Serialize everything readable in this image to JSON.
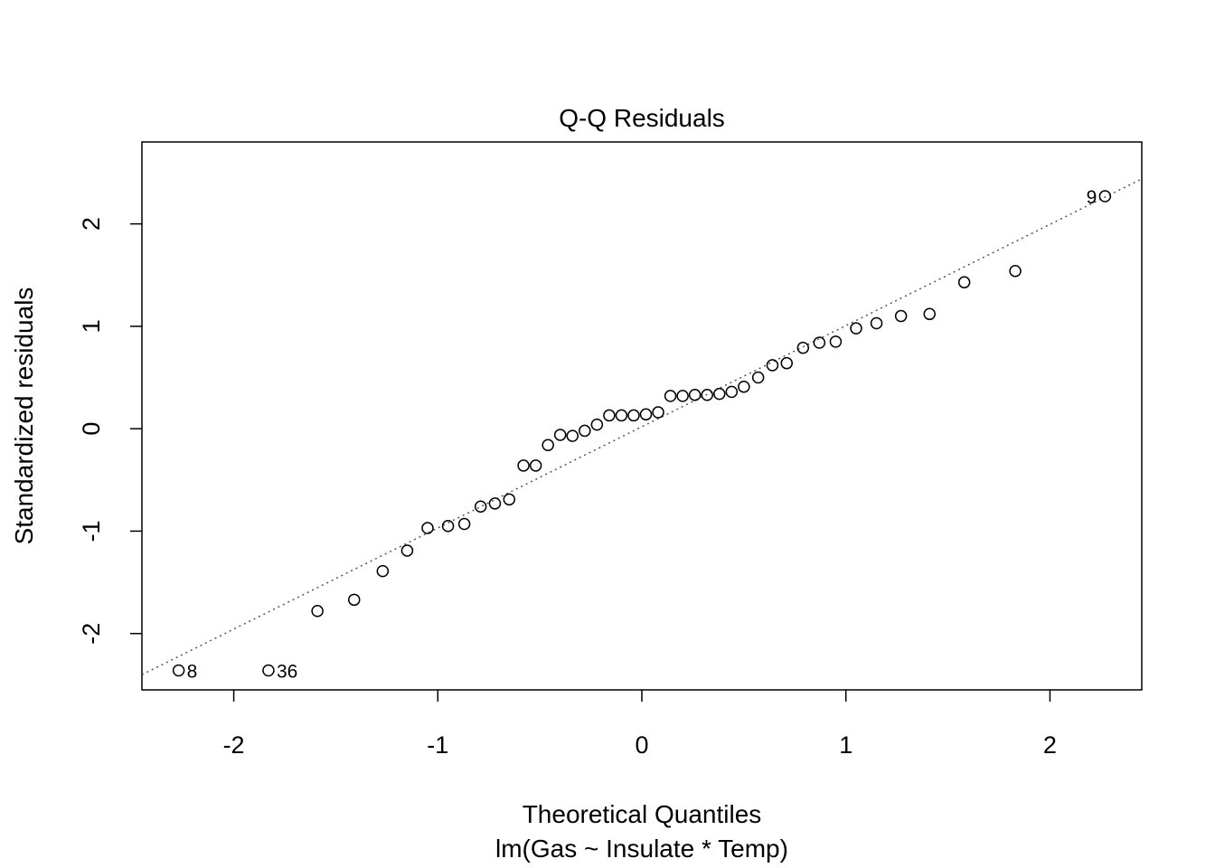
{
  "chart_data": {
    "type": "scatter",
    "title": "Q-Q Residuals",
    "xlabel": "Theoretical Quantiles",
    "subtitle": "lm(Gas ~ Insulate * Temp)",
    "ylabel": "Standardized residuals",
    "xlim": [
      -2.45,
      2.45
    ],
    "ylim": [
      -2.55,
      2.8
    ],
    "xticks": [
      -2,
      -1,
      0,
      1,
      2
    ],
    "yticks": [
      -2,
      -1,
      0,
      1,
      2
    ],
    "tick_labels_x": [
      "-2",
      "-1",
      "0",
      "1",
      "2"
    ],
    "tick_labels_y": [
      "-2",
      "-1",
      "0",
      "1",
      "2"
    ],
    "reference_line": {
      "slope": 0.988,
      "intercept": 0.019,
      "style": "dotted"
    },
    "x": [
      -2.27,
      -1.83,
      -1.59,
      -1.41,
      -1.27,
      -1.15,
      -1.05,
      -0.95,
      -0.87,
      -0.79,
      -0.72,
      -0.65,
      -0.58,
      -0.52,
      -0.46,
      -0.4,
      -0.34,
      -0.28,
      -0.22,
      -0.16,
      -0.1,
      -0.04,
      0.02,
      0.08,
      0.14,
      0.2,
      0.26,
      0.32,
      0.38,
      0.44,
      0.5,
      0.57,
      0.64,
      0.71,
      0.79,
      0.87,
      0.95,
      1.05,
      1.15,
      1.27,
      1.41,
      1.58,
      1.83,
      2.27
    ],
    "y": [
      -2.36,
      -2.36,
      -1.78,
      -1.67,
      -1.39,
      -1.19,
      -0.97,
      -0.95,
      -0.93,
      -0.76,
      -0.73,
      -0.69,
      -0.36,
      -0.36,
      -0.16,
      -0.06,
      -0.07,
      -0.02,
      0.04,
      0.13,
      0.13,
      0.13,
      0.14,
      0.16,
      0.32,
      0.32,
      0.33,
      0.33,
      0.34,
      0.36,
      0.41,
      0.5,
      0.62,
      0.64,
      0.79,
      0.84,
      0.85,
      0.98,
      1.03,
      1.1,
      1.12,
      1.43,
      1.54,
      2.27
    ],
    "point_labels": [
      {
        "index": 0,
        "text": "8",
        "side": "right"
      },
      {
        "index": 1,
        "text": "36",
        "side": "right"
      },
      {
        "index": 43,
        "text": "9",
        "side": "left"
      }
    ],
    "grid": false,
    "point_style": "open-circle"
  }
}
